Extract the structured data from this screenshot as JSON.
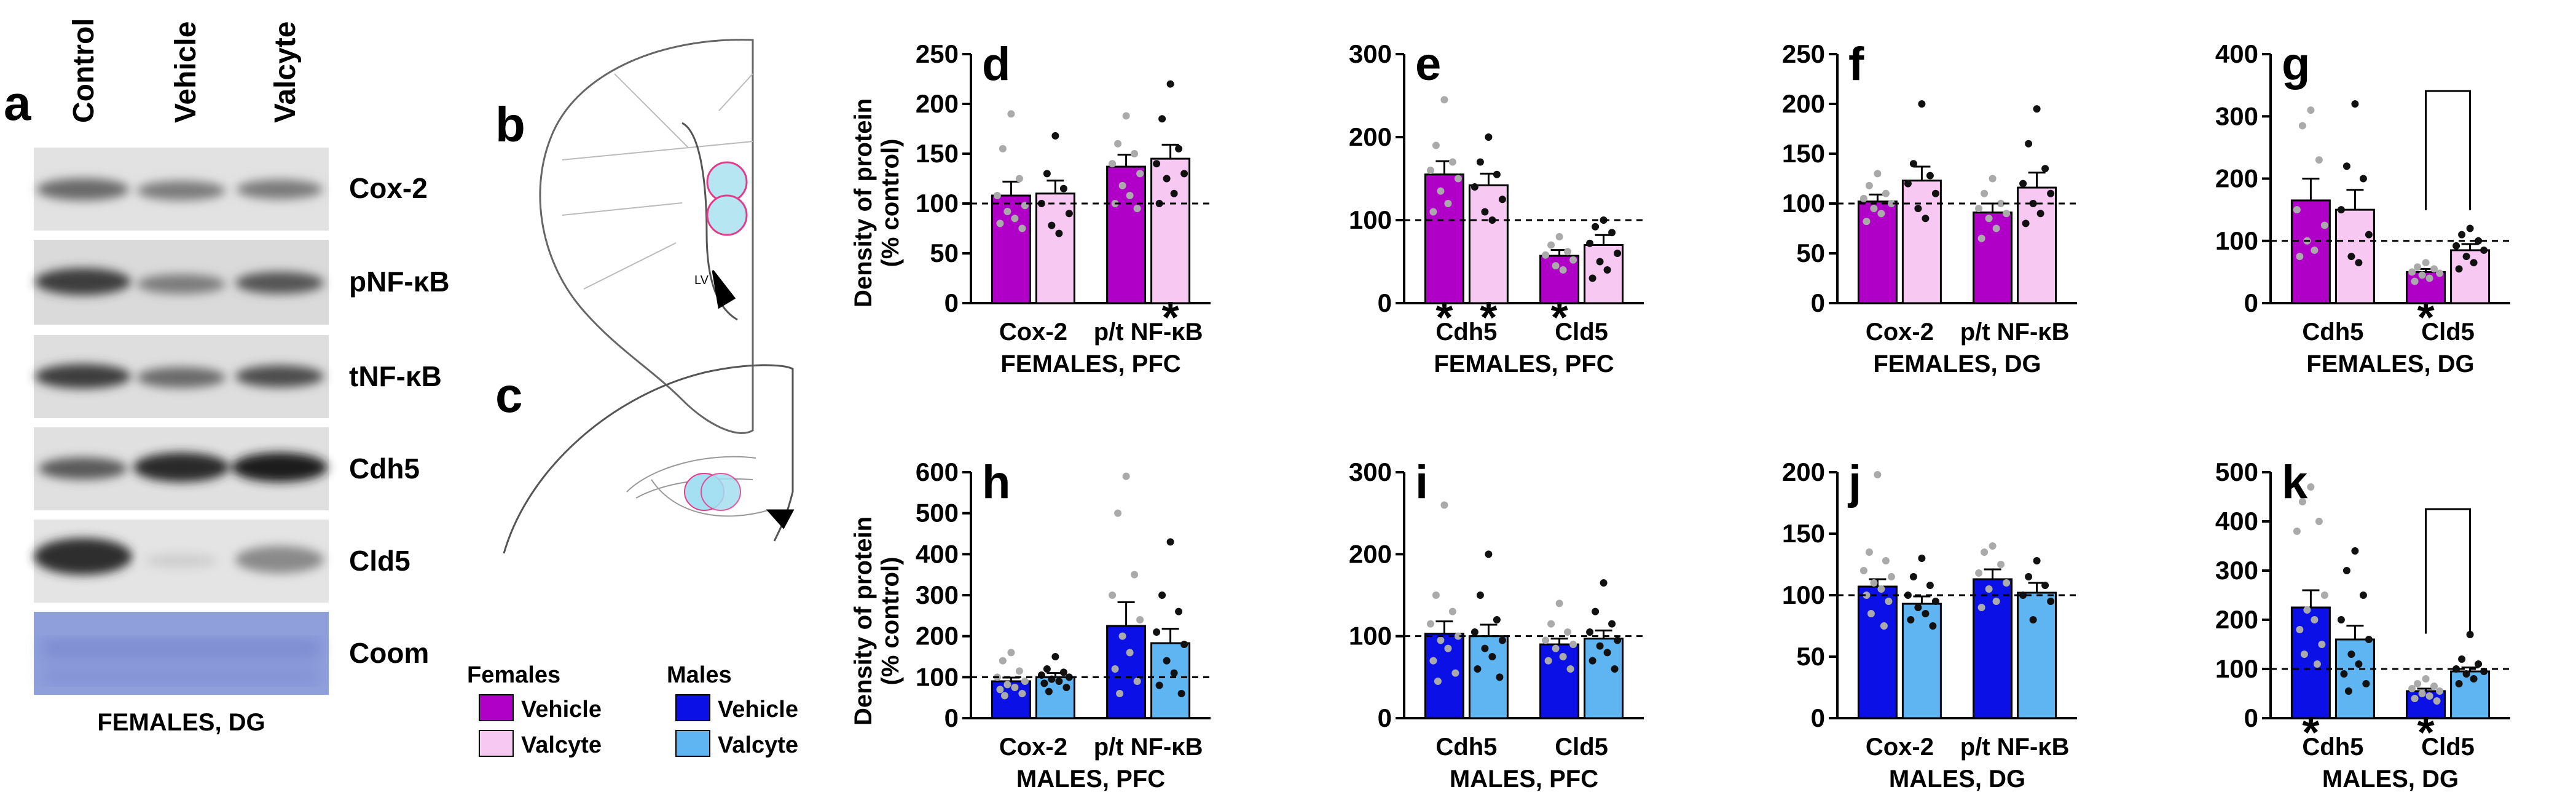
{
  "colors": {
    "female_vehicle": "#b000c8",
    "female_valcyte": "#f7c8f2",
    "male_vehicle": "#0a10e6",
    "male_valcyte": "#5fb4f2",
    "coom": "#8f9fdc"
  },
  "blot": {
    "panel_letter": "a",
    "lanes": [
      "Control",
      "Vehicle",
      "Valcyte"
    ],
    "rows": [
      "Cox-2",
      "pNF-κB",
      "tNF-κB",
      "Cdh5",
      "Cld5",
      "Coom"
    ],
    "caption": "FEMALES, DG"
  },
  "schematics": {
    "b": {
      "letter": "b",
      "lv_label": "LV"
    },
    "c": {
      "letter": "c"
    }
  },
  "legend": {
    "females_title": "Females",
    "males_title": "Males",
    "items": [
      {
        "label": "Vehicle",
        "color_key": "female_vehicle"
      },
      {
        "label": "Valcyte",
        "color_key": "female_valcyte"
      },
      {
        "label": "Vehicle",
        "color_key": "male_vehicle"
      },
      {
        "label": "Valcyte",
        "color_key": "male_valcyte"
      }
    ]
  },
  "ylabel": [
    "Density of protein",
    "(% control)"
  ],
  "chart_data": [
    {
      "id": "d",
      "type": "bar",
      "title": "FEMALES, PFC",
      "sex": "female",
      "categories": [
        "Cox-2",
        "p/t NF-κB"
      ],
      "series": [
        {
          "name": "Vehicle",
          "values": [
            108,
            137
          ],
          "sem": [
            14,
            12
          ]
        },
        {
          "name": "Valcyte",
          "values": [
            110,
            145
          ],
          "sem": [
            13,
            14
          ]
        }
      ],
      "yticks": [
        0,
        50,
        100,
        150,
        200,
        250
      ],
      "ylim": [
        0,
        250
      ],
      "reference": 100,
      "points": [
        [
          [
            190,
            155,
            125,
            108,
            98,
            92,
            85,
            80,
            75
          ],
          [
            168,
            130,
            115,
            100,
            90,
            78,
            70
          ]
        ],
        [
          [
            188,
            160,
            150,
            140,
            130,
            118,
            108,
            100,
            95
          ],
          [
            220,
            185,
            155,
            140,
            130,
            125,
            110,
            100
          ]
        ]
      ],
      "stars": [
        {
          "cat": 1,
          "series": 1
        }
      ],
      "bracket": null
    },
    {
      "id": "e",
      "type": "bar",
      "title": "FEMALES, PFC",
      "sex": "female",
      "categories": [
        "Cdh5",
        "Cld5"
      ],
      "series": [
        {
          "name": "Vehicle",
          "values": [
            155,
            57
          ],
          "sem": [
            16,
            7
          ]
        },
        {
          "name": "Valcyte",
          "values": [
            142,
            70
          ],
          "sem": [
            14,
            12
          ]
        }
      ],
      "yticks": [
        0,
        100,
        200,
        300
      ],
      "ylim": [
        0,
        300
      ],
      "reference": 100,
      "points": [
        [
          [
            245,
            190,
            170,
            160,
            150,
            135,
            120,
            110
          ],
          [
            200,
            170,
            155,
            140,
            125,
            110,
            100
          ]
        ],
        [
          [
            80,
            70,
            62,
            58,
            52,
            45,
            40
          ],
          [
            100,
            92,
            85,
            72,
            60,
            50,
            40,
            30
          ]
        ]
      ],
      "stars": [
        {
          "cat": 0,
          "series": 0
        },
        {
          "cat": 0,
          "series": 1
        },
        {
          "cat": 1,
          "series": 0
        }
      ],
      "bracket": null
    },
    {
      "id": "f",
      "type": "bar",
      "title": "FEMALES, DG",
      "sex": "female",
      "categories": [
        "Cox-2",
        "p/t NF-κB"
      ],
      "series": [
        {
          "name": "Vehicle",
          "values": [
            102,
            91
          ],
          "sem": [
            7,
            9
          ]
        },
        {
          "name": "Valcyte",
          "values": [
            123,
            116
          ],
          "sem": [
            14,
            15
          ]
        }
      ],
      "yticks": [
        0,
        50,
        100,
        150,
        200,
        250
      ],
      "ylim": [
        0,
        250
      ],
      "reference": 100,
      "points": [
        [
          [
            130,
            118,
            110,
            105,
            100,
            95,
            90,
            82
          ],
          [
            200,
            140,
            128,
            120,
            110,
            95,
            85
          ]
        ],
        [
          [
            125,
            110,
            100,
            95,
            90,
            85,
            75,
            65
          ],
          [
            195,
            160,
            135,
            120,
            110,
            100,
            90,
            80
          ]
        ]
      ],
      "stars": [],
      "bracket": null
    },
    {
      "id": "g",
      "type": "bar",
      "title": "FEMALES, DG",
      "sex": "female",
      "categories": [
        "Cdh5",
        "Cld5"
      ],
      "series": [
        {
          "name": "Vehicle",
          "values": [
            165,
            50
          ],
          "sem": [
            35,
            5
          ]
        },
        {
          "name": "Valcyte",
          "values": [
            150,
            85
          ],
          "sem": [
            32,
            10
          ]
        }
      ],
      "yticks": [
        0,
        100,
        200,
        300,
        400
      ],
      "ylim": [
        0,
        400
      ],
      "reference": 100,
      "points": [
        [
          [
            310,
            285,
            230,
            150,
            125,
            100,
            85,
            75
          ],
          [
            320,
            220,
            200,
            150,
            110,
            75,
            65
          ]
        ],
        [
          [
            65,
            58,
            55,
            50,
            48,
            45,
            40,
            35
          ],
          [
            120,
            110,
            100,
            92,
            85,
            75,
            65,
            55
          ]
        ]
      ],
      "stars": [
        {
          "cat": 1,
          "series": 0
        }
      ],
      "bracket": {
        "cat": 1
      }
    },
    {
      "id": "h",
      "type": "bar",
      "title": "MALES, PFC",
      "sex": "male",
      "categories": [
        "Cox-2",
        "p/t NF-κB"
      ],
      "series": [
        {
          "name": "Vehicle",
          "values": [
            90,
            225
          ],
          "sem": [
            9,
            58
          ]
        },
        {
          "name": "Valcyte",
          "values": [
            100,
            183
          ],
          "sem": [
            10,
            35
          ]
        }
      ],
      "yticks": [
        0,
        100,
        200,
        300,
        400,
        500,
        600
      ],
      "ylim": [
        0,
        600
      ],
      "reference": 100,
      "points": [
        [
          [
            160,
            140,
            115,
            100,
            90,
            82,
            75,
            70,
            60,
            55
          ],
          [
            150,
            120,
            112,
            105,
            100,
            95,
            90,
            85,
            75,
            65
          ]
        ],
        [
          [
            590,
            500,
            350,
            300,
            240,
            200,
            160,
            120,
            90,
            60
          ],
          [
            430,
            300,
            260,
            210,
            180,
            140,
            110,
            80,
            60
          ]
        ]
      ],
      "stars": [],
      "bracket": null
    },
    {
      "id": "i",
      "type": "bar",
      "title": "MALES, PFC",
      "sex": "male",
      "categories": [
        "Cdh5",
        "Cld5"
      ],
      "series": [
        {
          "name": "Vehicle",
          "values": [
            103,
            90
          ],
          "sem": [
            15,
            7
          ]
        },
        {
          "name": "Valcyte",
          "values": [
            100,
            97
          ],
          "sem": [
            14,
            10
          ]
        }
      ],
      "yticks": [
        0,
        100,
        200,
        300
      ],
      "ylim": [
        0,
        300
      ],
      "reference": 100,
      "points": [
        [
          [
            260,
            150,
            130,
            115,
            100,
            95,
            85,
            70,
            55,
            45
          ],
          [
            200,
            150,
            120,
            105,
            95,
            85,
            75,
            60,
            50
          ]
        ],
        [
          [
            140,
            115,
            105,
            95,
            90,
            85,
            75,
            70,
            60
          ],
          [
            165,
            130,
            115,
            105,
            95,
            88,
            80,
            70,
            60
          ]
        ]
      ],
      "stars": [],
      "bracket": null
    },
    {
      "id": "j",
      "type": "bar",
      "title": "MALES, DG",
      "sex": "male",
      "categories": [
        "Cox-2",
        "p/t NF-κB"
      ],
      "series": [
        {
          "name": "Vehicle",
          "values": [
            107,
            113
          ],
          "sem": [
            6,
            8
          ]
        },
        {
          "name": "Valcyte",
          "values": [
            93,
            102
          ],
          "sem": [
            6,
            8
          ]
        }
      ],
      "yticks": [
        0,
        50,
        100,
        150,
        200
      ],
      "ylim": [
        0,
        200
      ],
      "reference": 100,
      "points": [
        [
          [
            198,
            135,
            128,
            120,
            115,
            110,
            105,
            100,
            95,
            85,
            75
          ],
          [
            130,
            115,
            108,
            100,
            95,
            90,
            85,
            80,
            75
          ]
        ],
        [
          [
            140,
            135,
            125,
            118,
            110,
            105,
            95,
            90
          ],
          [
            128,
            115,
            108,
            100,
            95,
            80
          ]
        ]
      ],
      "stars": [],
      "bracket": null
    },
    {
      "id": "k",
      "type": "bar",
      "title": "MALES, DG",
      "sex": "male",
      "categories": [
        "Cdh5",
        "Cld5"
      ],
      "series": [
        {
          "name": "Vehicle",
          "values": [
            225,
            55
          ],
          "sem": [
            35,
            5
          ]
        },
        {
          "name": "Valcyte",
          "values": [
            160,
            95
          ],
          "sem": [
            28,
            8
          ]
        }
      ],
      "yticks": [
        0,
        100,
        200,
        300,
        400,
        500
      ],
      "ylim": [
        0,
        500
      ],
      "reference": 100,
      "points": [
        [
          [
            470,
            440,
            400,
            380,
            250,
            220,
            200,
            180,
            150,
            130,
            110
          ],
          [
            340,
            300,
            250,
            200,
            160,
            130,
            110,
            90,
            70,
            55
          ]
        ],
        [
          [
            80,
            70,
            65,
            60,
            55,
            50,
            45,
            40,
            35
          ],
          [
            170,
            120,
            110,
            100,
            95,
            90,
            80,
            70
          ]
        ]
      ],
      "stars": [
        {
          "cat": 0,
          "series": 0
        },
        {
          "cat": 1,
          "series": 0
        }
      ],
      "bracket": {
        "cat": 1
      }
    }
  ]
}
